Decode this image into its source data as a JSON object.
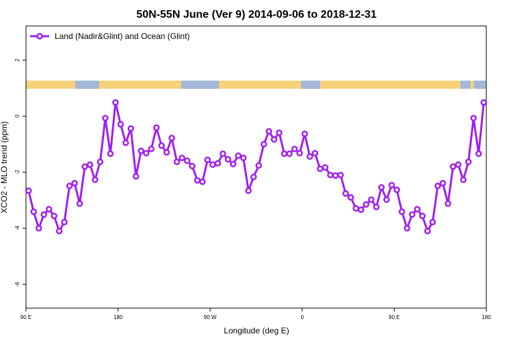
{
  "chart_data": {
    "type": "line",
    "title": "50N-55N June (Ver 9)   2014-09-06 to 2018-12-31",
    "x_label": "Longitude (deg E)",
    "y_label": "XCO2 - MLO trend (ppm)",
    "xlim": [
      90,
      540
    ],
    "ylim": [
      -6.85,
      3.22
    ],
    "xticks": [
      {
        "value": 90,
        "label": "90 E"
      },
      180,
      {
        "value": 270,
        "label": "90 W"
      },
      {
        "value": 360,
        "label": "0"
      },
      {
        "value": 450,
        "label": "90 E"
      },
      {
        "value": 540,
        "label": "180"
      }
    ],
    "yticks": [
      -6,
      -4,
      -2,
      0,
      2
    ],
    "legend_position": "top-left",
    "x": [
      92.5,
      97.5,
      102.5,
      107.5,
      112.5,
      117.5,
      122.5,
      127.5,
      132.5,
      137.5,
      142.5,
      147.5,
      152.5,
      157.5,
      162.5,
      167.5,
      172.5,
      177.5,
      182.5,
      187.5,
      192.5,
      197.5,
      202.5,
      207.5,
      212.5,
      217.5,
      222.5,
      227.5,
      232.5,
      237.5,
      242.5,
      247.5,
      252.5,
      257.5,
      262.5,
      267.5,
      272.5,
      277.5,
      282.5,
      287.5,
      292.5,
      297.5,
      302.5,
      307.5,
      312.5,
      317.5,
      322.5,
      327.5,
      332.5,
      337.5,
      342.5,
      347.5,
      352.5,
      357.5,
      362.5,
      367.5,
      372.5,
      377.5,
      382.5,
      387.5,
      392.5,
      397.5,
      402.5,
      407.5,
      412.5,
      417.5,
      422.5,
      427.5,
      432.5,
      437.5,
      442.5,
      447.5,
      452.5,
      457.5,
      462.5,
      467.5,
      472.5,
      477.5,
      482.5,
      487.5,
      492.5,
      497.5,
      502.5,
      507.5,
      512.5,
      517.5,
      522.5,
      527.5,
      532.5,
      537.5
    ],
    "series": [
      {
        "name": "Land (Nadir&Glint) and Ocean (Glint)",
        "color": "#a020f0",
        "values": [
          -2.66,
          -3.41,
          -4.0,
          -3.51,
          -3.32,
          -3.56,
          -4.1,
          -3.78,
          -2.49,
          -2.39,
          -3.12,
          -1.8,
          -1.73,
          -2.27,
          -1.63,
          -0.07,
          -1.34,
          0.49,
          -0.29,
          -0.95,
          -0.44,
          -2.15,
          -1.24,
          -1.32,
          -1.17,
          -0.41,
          -1.05,
          -1.29,
          -0.78,
          -1.63,
          -1.49,
          -1.59,
          -1.78,
          -2.29,
          -2.34,
          -1.56,
          -1.73,
          -1.68,
          -1.34,
          -1.54,
          -1.71,
          -1.41,
          -1.49,
          -2.66,
          -2.17,
          -1.76,
          -1.0,
          -0.54,
          -0.83,
          -0.59,
          -1.34,
          -1.34,
          -1.17,
          -1.32,
          -0.63,
          -1.44,
          -1.32,
          -1.88,
          -1.83,
          -2.1,
          -2.12,
          -2.1,
          -2.76,
          -2.9,
          -3.29,
          -3.34,
          -3.15,
          -2.98,
          -3.24,
          -2.54,
          -2.98,
          -2.46,
          -2.63,
          -3.41,
          -4.0,
          -3.51,
          -3.32,
          -3.56,
          -4.1,
          -3.78,
          -2.49,
          -2.39,
          -3.12,
          -1.8,
          -1.73,
          -2.27,
          -1.63,
          -0.07,
          -1.34,
          0.49
        ]
      }
    ]
  }
}
